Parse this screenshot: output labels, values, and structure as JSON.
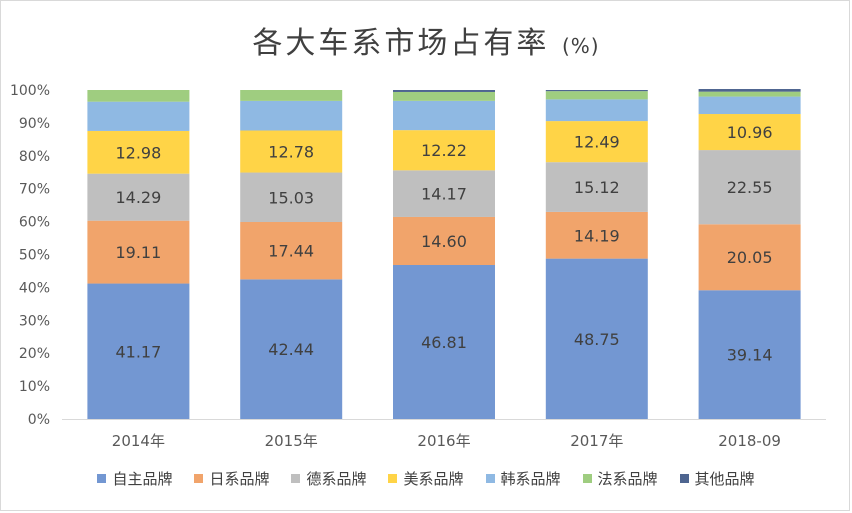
{
  "chart_data": {
    "type": "bar",
    "stacked": true,
    "title": "各大车系市场占有率",
    "title_unit": "(%)",
    "categories": [
      "2014年",
      "2015年",
      "2016年",
      "2017年",
      "2018-09"
    ],
    "ylim": [
      0,
      100
    ],
    "yticks": [
      "0%",
      "10%",
      "20%",
      "30%",
      "40%",
      "50%",
      "60%",
      "70%",
      "80%",
      "90%",
      "100%"
    ],
    "grid": false,
    "legend_position": "bottom",
    "series": [
      {
        "name": "自主品牌",
        "color": "#7397d2",
        "values": [
          41.17,
          42.44,
          46.81,
          48.75,
          39.14
        ],
        "labels": [
          "41.17",
          "42.44",
          "46.81",
          "48.75",
          "39.14"
        ]
      },
      {
        "name": "日系品牌",
        "color": "#f1a46b",
        "values": [
          19.11,
          17.44,
          14.6,
          14.19,
          20.05
        ],
        "labels": [
          "19.11",
          "17.44",
          "14.60",
          "14.19",
          "20.05"
        ]
      },
      {
        "name": "德系品牌",
        "color": "#bfbfbf",
        "values": [
          14.29,
          15.03,
          14.17,
          15.12,
          22.55
        ],
        "labels": [
          "14.29",
          "15.03",
          "14.17",
          "15.12",
          "22.55"
        ]
      },
      {
        "name": "美系品牌",
        "color": "#ffd447",
        "values": [
          12.98,
          12.78,
          12.22,
          12.49,
          10.96
        ],
        "labels": [
          "12.98",
          "12.78",
          "12.22",
          "12.49",
          "10.96"
        ]
      },
      {
        "name": "韩系品牌",
        "color": "#8fb9e3",
        "values": [
          8.9,
          9.0,
          8.9,
          6.6,
          5.3
        ],
        "labels": null
      },
      {
        "name": "法系品牌",
        "color": "#9fcd80",
        "values": [
          3.55,
          3.31,
          2.7,
          2.5,
          1.5
        ],
        "labels": null
      },
      {
        "name": "其他品牌",
        "color": "#4e6590",
        "values": [
          0,
          0,
          0.6,
          0.35,
          0.8
        ],
        "labels": null
      }
    ]
  }
}
